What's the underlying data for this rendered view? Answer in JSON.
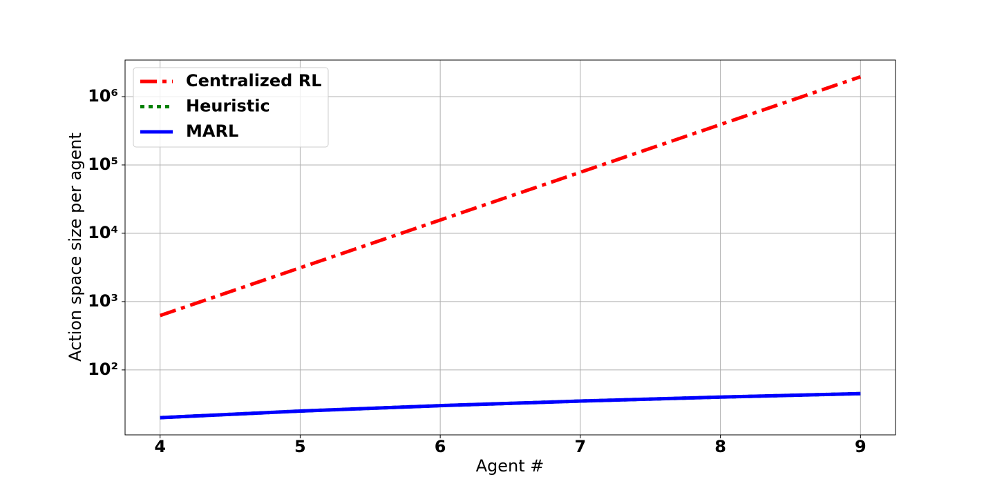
{
  "chart_data": {
    "type": "line",
    "x_label": "Agent #",
    "y_label": "Action space size per agent",
    "x": [
      4,
      5,
      6,
      7,
      8,
      9
    ],
    "series": [
      {
        "name": "Centralized RL",
        "color": "#ff0000",
        "style": "dashdot",
        "values": [
          625,
          3125,
          15625,
          78125,
          390625,
          1953125
        ]
      },
      {
        "name": "Heuristic",
        "color": "#008000",
        "style": "dotted",
        "values": [
          20,
          25,
          30,
          35,
          40,
          45
        ]
      },
      {
        "name": "MARL",
        "color": "#0000ff",
        "style": "solid",
        "values": [
          20,
          25,
          30,
          35,
          40,
          45
        ]
      }
    ],
    "xlim": [
      3.75,
      9.25
    ],
    "xticks": [
      4,
      5,
      6,
      7,
      8,
      9
    ],
    "ylim": [
      11.2,
      3430000
    ],
    "yscale": "log",
    "yticks": [
      {
        "value": 100,
        "label": "10²"
      },
      {
        "value": 1000,
        "label": "10³"
      },
      {
        "value": 10000,
        "label": "10⁴"
      },
      {
        "value": 100000,
        "label": "10⁵"
      },
      {
        "value": 1000000,
        "label": "10⁶"
      }
    ],
    "grid": true,
    "legend": "upper left"
  }
}
